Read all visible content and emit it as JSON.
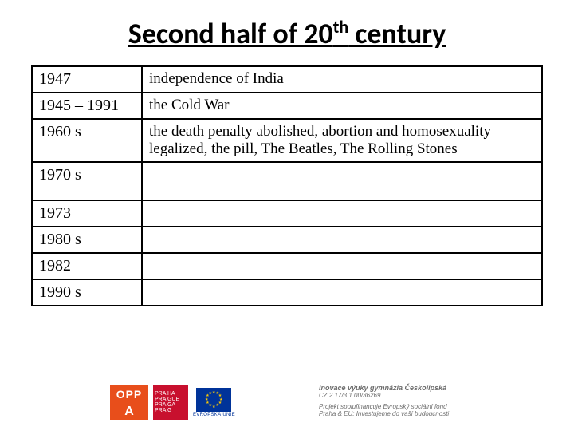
{
  "title_pre": "Second half of 20",
  "title_sup": "th",
  "title_post": " century",
  "rows": [
    {
      "year": "1947",
      "desc": "independence of India",
      "cls": "row-normal"
    },
    {
      "year": "1945 – 1991",
      "desc": "the Cold War",
      "cls": "row-normal"
    },
    {
      "year": "1960 s",
      "desc": "the death penalty abolished, abortion and homosexuality legalized, the pill, The Beatles, The Rolling Stones",
      "cls": "row-tall"
    },
    {
      "year": "1970 s",
      "desc": "",
      "cls": "row-tall"
    },
    {
      "year": "1973",
      "desc": "",
      "cls": "row-normal"
    },
    {
      "year": "1980 s",
      "desc": "",
      "cls": "row-normal"
    },
    {
      "year": "1982",
      "desc": "",
      "cls": "row-normal"
    },
    {
      "year": "1990 s",
      "desc": "",
      "cls": "row-normal"
    }
  ],
  "logos": {
    "oppa_top": "OPP",
    "oppa_bottom": "A",
    "prague_lines": [
      "PRA HA",
      "PRA GUE",
      "PRA GA",
      "PRA G"
    ],
    "eu_label": "EVROPSKÁ UNIE"
  },
  "footer": {
    "line1": "Inovace výuky gymnázia Českolipská",
    "line2": "CZ.2.17/3.1.00/36269",
    "line3a": "Projekt spolufinancuje Evropský sociální fond",
    "line3b": "Praha & EU: Investujeme do vaší budoucnosti"
  },
  "colors": {
    "oppa": "#e84e1b",
    "prague": "#c8102e",
    "eu_blue": "#003399",
    "eu_gold": "#ffcc00",
    "footer_text": "#6b6b6b"
  }
}
